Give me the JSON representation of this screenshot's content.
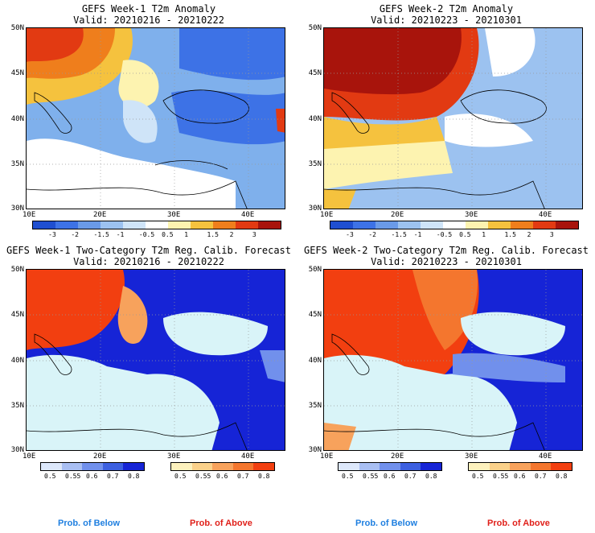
{
  "panels": [
    {
      "title": "GEFS Week-1 T2m Anomaly",
      "valid": "Valid: 20210216 - 20210222"
    },
    {
      "title": "GEFS Week-2 T2m Anomaly",
      "valid": "Valid: 20210223 - 20210301"
    },
    {
      "title": "GEFS Week-1 Two-Category T2m Reg. Calib. Forecast",
      "valid": "Valid: 20210216 - 20210222"
    },
    {
      "title": "GEFS Week-2 Two-Category T2m Reg. Calib. Forecast",
      "valid": "Valid: 20210223 - 20210301"
    }
  ],
  "axes": {
    "lat_labels": [
      "50N",
      "45N",
      "40N",
      "35N",
      "30N"
    ],
    "lon_labels": [
      "10E",
      "20E",
      "30E",
      "40E"
    ]
  },
  "anomaly_colorbar": {
    "ticks": [
      "-3",
      "-2",
      "-1.5",
      "-1",
      "-0.5",
      "0.5",
      "1",
      "1.5",
      "2",
      "3"
    ],
    "colors": [
      "#1f4fd0",
      "#3d72e6",
      "#6a9ae8",
      "#9cc2f0",
      "#cfe4f8",
      "#ffffff",
      "#fdf3b0",
      "#f5c23e",
      "#ef7e1c",
      "#e23a12",
      "#a8140c"
    ]
  },
  "prob_colorbar": {
    "below": {
      "ticks": [
        "0.5",
        "0.55",
        "0.6",
        "0.7",
        "0.8"
      ],
      "colors": [
        "#dde8fb",
        "#a9bff3",
        "#7190ec",
        "#3c5fe0",
        "#1624d6"
      ]
    },
    "above": {
      "ticks": [
        "0.5",
        "0.55",
        "0.6",
        "0.7",
        "0.8"
      ],
      "colors": [
        "#fdf1bd",
        "#fbd18a",
        "#f7a25c",
        "#f4762e",
        "#f23f10"
      ]
    }
  },
  "legend": {
    "below": "Prob. of Below",
    "above": "Prob. of Above"
  }
}
